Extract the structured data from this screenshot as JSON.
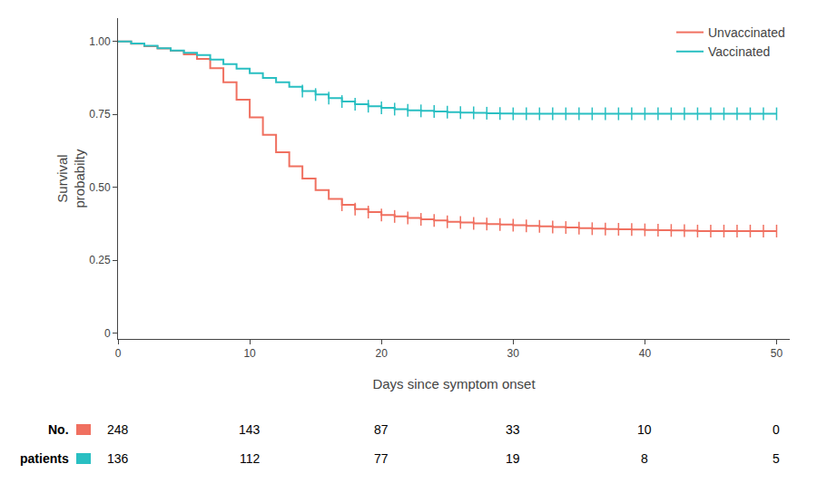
{
  "chart_data": {
    "type": "step",
    "xlabel": "Days since symptom onset",
    "ylabel": "Survival\nprobabilty",
    "xlim": [
      0,
      51
    ],
    "ylim": [
      -0.02,
      1.08
    ],
    "xticks": [
      0,
      10,
      20,
      30,
      40,
      50
    ],
    "yticks": [
      0,
      0.25,
      {
        "value": 0.5,
        "label": "0.50"
      },
      0.75,
      {
        "value": 1.0,
        "label": "1.00"
      }
    ],
    "grid": false,
    "legend": "upper right",
    "series": [
      {
        "name": "Unvaccinated",
        "color": "#F07060",
        "x": [
          0,
          1,
          2,
          3,
          4,
          5,
          6,
          7,
          8,
          9,
          10,
          11,
          12,
          13,
          14,
          15,
          16,
          17,
          18,
          19,
          20,
          21,
          22,
          23,
          24,
          25,
          26,
          27,
          28,
          29,
          30,
          31,
          32,
          33,
          34,
          35,
          36,
          37,
          38,
          39,
          40,
          41,
          42,
          43,
          44,
          45,
          46,
          47,
          48,
          49,
          50
        ],
        "values": [
          1.0,
          0.992,
          0.984,
          0.976,
          0.968,
          0.956,
          0.94,
          0.908,
          0.86,
          0.8,
          0.74,
          0.68,
          0.62,
          0.572,
          0.53,
          0.49,
          0.46,
          0.44,
          0.425,
          0.415,
          0.405,
          0.4,
          0.395,
          0.39,
          0.386,
          0.382,
          0.379,
          0.376,
          0.374,
          0.372,
          0.37,
          0.368,
          0.366,
          0.364,
          0.362,
          0.36,
          0.358,
          0.357,
          0.356,
          0.355,
          0.354,
          0.353,
          0.352,
          0.351,
          0.35,
          0.35,
          0.35,
          0.35,
          0.35,
          0.35,
          0.35
        ],
        "censored": [
          17,
          18,
          19,
          20,
          21,
          22,
          23,
          24,
          25,
          26,
          27,
          28,
          29,
          30,
          31,
          32,
          33,
          34,
          35,
          36,
          37,
          38,
          39,
          40,
          41,
          42,
          43,
          44,
          45,
          46,
          47,
          48,
          49,
          50
        ],
        "at_risk": [
          248,
          143,
          87,
          33,
          10,
          0
        ]
      },
      {
        "name": "Vaccinated",
        "color": "#29BFC2",
        "x": [
          0,
          1,
          2,
          3,
          4,
          5,
          6,
          7,
          8,
          9,
          10,
          11,
          12,
          13,
          14,
          15,
          16,
          17,
          18,
          19,
          20,
          21,
          22,
          23,
          24,
          25,
          26,
          27,
          28,
          29,
          30,
          31,
          32,
          33,
          34,
          35,
          36,
          37,
          38,
          39,
          40,
          41,
          42,
          43,
          44,
          45,
          46,
          47,
          48,
          49,
          50
        ],
        "values": [
          1.0,
          0.993,
          0.985,
          0.977,
          0.969,
          0.961,
          0.953,
          0.938,
          0.922,
          0.907,
          0.891,
          0.875,
          0.86,
          0.845,
          0.83,
          0.818,
          0.806,
          0.794,
          0.785,
          0.778,
          0.772,
          0.768,
          0.764,
          0.762,
          0.76,
          0.758,
          0.756,
          0.755,
          0.754,
          0.753,
          0.752,
          0.752,
          0.752,
          0.752,
          0.752,
          0.752,
          0.752,
          0.752,
          0.752,
          0.752,
          0.752,
          0.752,
          0.752,
          0.752,
          0.752,
          0.752,
          0.752,
          0.752,
          0.752,
          0.752,
          0.752
        ],
        "censored": [
          14,
          15,
          16,
          17,
          18,
          19,
          20,
          21,
          22,
          23,
          24,
          25,
          26,
          27,
          28,
          29,
          30,
          31,
          32,
          33,
          34,
          35,
          36,
          37,
          38,
          39,
          40,
          41,
          42,
          43,
          44,
          45,
          46,
          47,
          48,
          49,
          50
        ],
        "at_risk": [
          136,
          112,
          77,
          19,
          8,
          5
        ]
      }
    ],
    "at_risk_times": [
      0,
      10,
      20,
      30,
      40,
      50
    ],
    "at_risk_labels": [
      "No.",
      "patients"
    ]
  }
}
